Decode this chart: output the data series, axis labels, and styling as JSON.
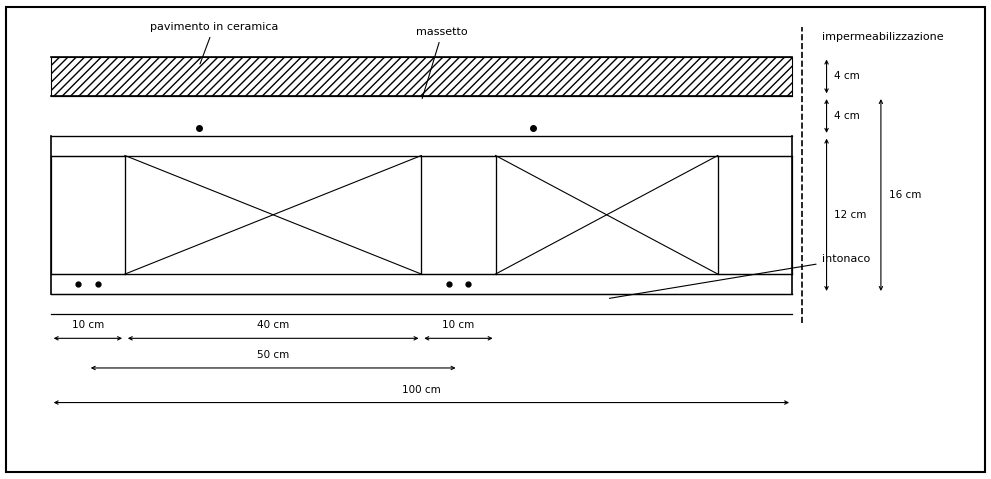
{
  "bg_color": "#ffffff",
  "border_color": "#000000",
  "line_color": "#000000",
  "hatch_color": "#000000",
  "fig_width": 9.91,
  "fig_height": 4.79,
  "labels": {
    "pavimento_in_ceramica": "pavimento in ceramica",
    "massetto": "massetto",
    "impermeabilizzazione": "impermeabilizzazione",
    "intonaco": "intonaco",
    "dim_4cm_1": "4 cm",
    "dim_4cm_2": "4 cm",
    "dim_12cm": "12 cm",
    "dim_16cm": "16 cm",
    "dim_10cm_1": "10 cm",
    "dim_40cm": "40 cm",
    "dim_10cm_2": "10 cm",
    "dim_50cm": "50 cm",
    "dim_100cm": "100 cm"
  }
}
